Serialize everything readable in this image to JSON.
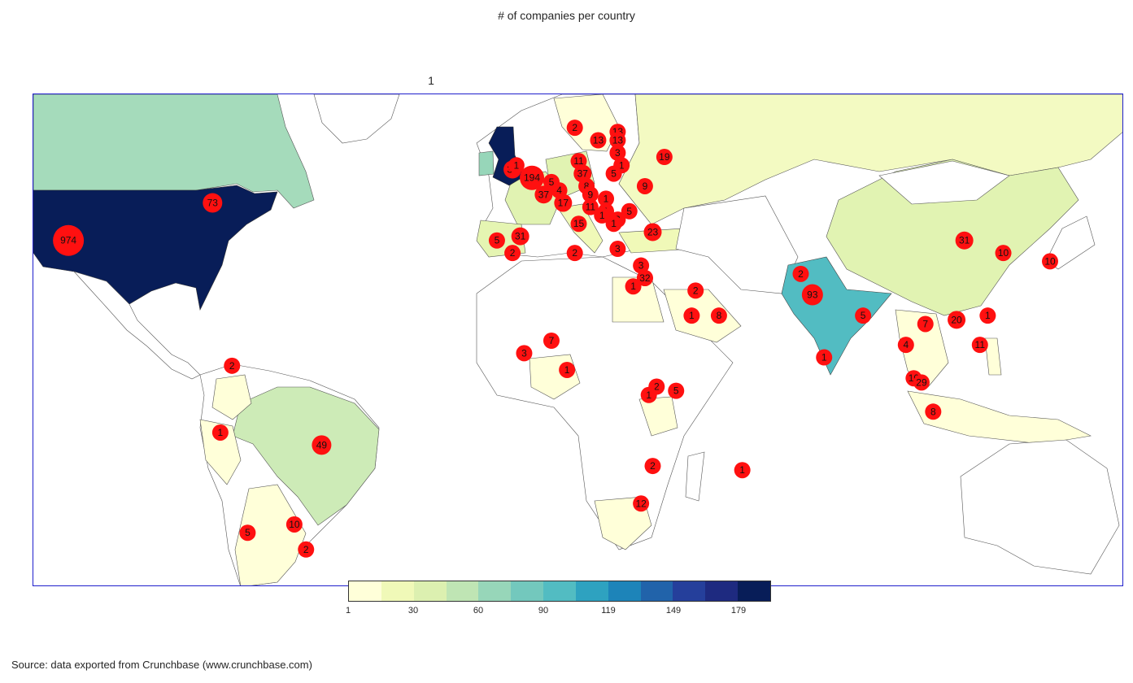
{
  "title": "# of companies per country",
  "subtitle": "1",
  "source": "Source: data exported from Crunchbase (www.crunchbase.com)",
  "colors": {
    "frame": "#1f1fcc",
    "bubble": "#ff1010",
    "country_outline": "#555555",
    "scale": [
      "#ffffd9",
      "#f0f9b8",
      "#dcf0b0",
      "#bfe5b4",
      "#97d6b9",
      "#73c8bd",
      "#52bcc2",
      "#2ea2c0",
      "#1d84b9",
      "#2163aa",
      "#253f9b",
      "#1e2a80",
      "#081d58"
    ]
  },
  "colorbar": {
    "ticks": [
      "1",
      "30",
      "60",
      "90",
      "119",
      "149",
      "179"
    ]
  },
  "map_data": {
    "type": "choropleth-bubble",
    "countries": [
      {
        "name": "United States",
        "value": 974,
        "color": "#081d58"
      },
      {
        "name": "Canada",
        "value": 73,
        "color": "#a5dbbb"
      },
      {
        "name": "United Kingdom",
        "value": 194,
        "color": "#081d58"
      },
      {
        "name": "India",
        "value": 93,
        "color": "#52bcc2"
      },
      {
        "name": "Brazil",
        "value": 49,
        "color": "#cdebb7"
      },
      {
        "name": "China",
        "value": 31,
        "color": "#e1f3b2"
      },
      {
        "name": "Russia",
        "value": 19,
        "color": "#f3fac2"
      },
      {
        "name": "Spain",
        "value": 31,
        "color": "#e5f5b2"
      },
      {
        "name": "France",
        "value": 37,
        "color": "#e1f3b2"
      }
    ],
    "bubbles": [
      {
        "label": "974",
        "lon": -116,
        "lat": 35,
        "r": 19
      },
      {
        "label": "73",
        "lon": -79,
        "lat": 44,
        "r": 12
      },
      {
        "label": "2",
        "lon": -74,
        "lat": 5,
        "r": 10
      },
      {
        "label": "1",
        "lon": -77,
        "lat": -11,
        "r": 10
      },
      {
        "label": "49",
        "lon": -51,
        "lat": -14,
        "r": 12
      },
      {
        "label": "10",
        "lon": -58,
        "lat": -33,
        "r": 10
      },
      {
        "label": "5",
        "lon": -70,
        "lat": -35,
        "r": 10
      },
      {
        "label": "2",
        "lon": -55,
        "lat": -39,
        "r": 10
      },
      {
        "label": "2",
        "lon": 14,
        "lat": 62,
        "r": 10
      },
      {
        "label": "13",
        "lon": 20,
        "lat": 59,
        "r": 10
      },
      {
        "label": "13",
        "lon": 25,
        "lat": 61,
        "r": 10
      },
      {
        "label": "13",
        "lon": 25,
        "lat": 59,
        "r": 10
      },
      {
        "label": "3",
        "lon": 25,
        "lat": 56,
        "r": 10
      },
      {
        "label": "1",
        "lon": 26,
        "lat": 53,
        "r": 10
      },
      {
        "label": "19",
        "lon": 37,
        "lat": 55,
        "r": 10
      },
      {
        "label": "11",
        "lon": 15,
        "lat": 54,
        "r": 10
      },
      {
        "label": "5",
        "lon": 24,
        "lat": 51,
        "r": 10
      },
      {
        "label": "9",
        "lon": 32,
        "lat": 48,
        "r": 10
      },
      {
        "label": "33",
        "lon": -2,
        "lat": 52,
        "r": 11
      },
      {
        "label": "1",
        "lon": -1,
        "lat": 53,
        "r": 10
      },
      {
        "label": "194",
        "lon": 3,
        "lat": 50,
        "r": 15
      },
      {
        "label": "5",
        "lon": 8,
        "lat": 49,
        "r": 10
      },
      {
        "label": "37",
        "lon": 16,
        "lat": 51,
        "r": 11
      },
      {
        "label": "37",
        "lon": 6,
        "lat": 46,
        "r": 11
      },
      {
        "label": "4",
        "lon": 10,
        "lat": 47,
        "r": 10
      },
      {
        "label": "8",
        "lon": 17,
        "lat": 48,
        "r": 10
      },
      {
        "label": "17",
        "lon": 11,
        "lat": 44,
        "r": 11
      },
      {
        "label": "9",
        "lon": 18,
        "lat": 46,
        "r": 10
      },
      {
        "label": "1",
        "lon": 22,
        "lat": 45,
        "r": 10
      },
      {
        "label": "11",
        "lon": 18,
        "lat": 43,
        "r": 10
      },
      {
        "label": "1",
        "lon": 22,
        "lat": 42,
        "r": 10
      },
      {
        "label": "1",
        "lon": 21,
        "lat": 41,
        "r": 10
      },
      {
        "label": "2",
        "lon": 25,
        "lat": 40,
        "r": 10
      },
      {
        "label": "1",
        "lon": 24,
        "lat": 39,
        "r": 10
      },
      {
        "label": "5",
        "lon": 28,
        "lat": 42,
        "r": 10
      },
      {
        "label": "15",
        "lon": 15,
        "lat": 39,
        "r": 10
      },
      {
        "label": "23",
        "lon": 34,
        "lat": 37,
        "r": 11
      },
      {
        "label": "5",
        "lon": -6,
        "lat": 35,
        "r": 10
      },
      {
        "label": "31",
        "lon": 0,
        "lat": 36,
        "r": 11
      },
      {
        "label": "2",
        "lon": -2,
        "lat": 32,
        "r": 10
      },
      {
        "label": "2",
        "lon": 14,
        "lat": 32,
        "r": 10
      },
      {
        "label": "3",
        "lon": 25,
        "lat": 33,
        "r": 10
      },
      {
        "label": "3",
        "lon": 31,
        "lat": 29,
        "r": 10
      },
      {
        "label": "2",
        "lon": 32,
        "lat": 26,
        "r": 10
      },
      {
        "label": "32",
        "lon": 32,
        "lat": 26,
        "r": 10
      },
      {
        "label": "1",
        "lon": 29,
        "lat": 24,
        "r": 10
      },
      {
        "label": "2",
        "lon": 45,
        "lat": 23,
        "r": 10
      },
      {
        "label": "1",
        "lon": 44,
        "lat": 17,
        "r": 10
      },
      {
        "label": "8",
        "lon": 51,
        "lat": 17,
        "r": 10
      },
      {
        "label": "2",
        "lon": 72,
        "lat": 27,
        "r": 10
      },
      {
        "label": "93",
        "lon": 75,
        "lat": 22,
        "r": 13
      },
      {
        "label": "5",
        "lon": 88,
        "lat": 17,
        "r": 10
      },
      {
        "label": "1",
        "lon": 78,
        "lat": 7,
        "r": 10
      },
      {
        "label": "31",
        "lon": 114,
        "lat": 35,
        "r": 11
      },
      {
        "label": "10",
        "lon": 124,
        "lat": 32,
        "r": 10
      },
      {
        "label": "10",
        "lon": 136,
        "lat": 30,
        "r": 10
      },
      {
        "label": "1",
        "lon": 120,
        "lat": 17,
        "r": 10
      },
      {
        "label": "20",
        "lon": 112,
        "lat": 16,
        "r": 11
      },
      {
        "label": "7",
        "lon": 104,
        "lat": 15,
        "r": 10
      },
      {
        "label": "11",
        "lon": 118,
        "lat": 10,
        "r": 10
      },
      {
        "label": "4",
        "lon": 99,
        "lat": 10,
        "r": 10
      },
      {
        "label": "10",
        "lon": 101,
        "lat": 2,
        "r": 10
      },
      {
        "label": "29",
        "lon": 103,
        "lat": 1,
        "r": 10
      },
      {
        "label": "8",
        "lon": 106,
        "lat": -6,
        "r": 10
      },
      {
        "label": "7",
        "lon": 8,
        "lat": 11,
        "r": 10
      },
      {
        "label": "3",
        "lon": 1,
        "lat": 8,
        "r": 10
      },
      {
        "label": "1",
        "lon": 12,
        "lat": 4,
        "r": 10
      },
      {
        "label": "2",
        "lon": 35,
        "lat": 0,
        "r": 10
      },
      {
        "label": "1",
        "lon": 33,
        "lat": -2,
        "r": 10
      },
      {
        "label": "5",
        "lon": 40,
        "lat": -1,
        "r": 10
      },
      {
        "label": "2",
        "lon": 34,
        "lat": -19,
        "r": 10
      },
      {
        "label": "12",
        "lon": 31,
        "lat": -28,
        "r": 10
      },
      {
        "label": "1",
        "lon": 57,
        "lat": -20,
        "r": 10
      }
    ]
  }
}
